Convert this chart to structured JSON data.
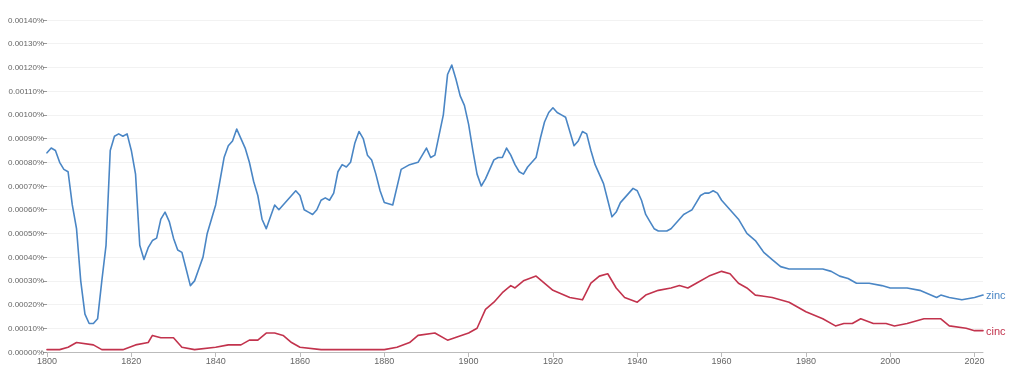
{
  "chart_data": {
    "type": "line",
    "xlim": [
      1800,
      2022
    ],
    "xticks": [
      1800,
      1820,
      1840,
      1860,
      1880,
      1900,
      1920,
      1940,
      1960,
      1980,
      2000,
      2020
    ],
    "ylim": [
      0,
      0.0014
    ],
    "yticks": [
      {
        "value": 0,
        "label": "0.00000%"
      },
      {
        "value": 0.0001,
        "label": "0.00010%"
      },
      {
        "value": 0.0002,
        "label": "0.00020%"
      },
      {
        "value": 0.0003,
        "label": "0.00030%"
      },
      {
        "value": 0.0004,
        "label": "0.00040%"
      },
      {
        "value": 0.0005,
        "label": "0.00050%"
      },
      {
        "value": 0.0006,
        "label": "0.00060%"
      },
      {
        "value": 0.0007,
        "label": "0.00070%"
      },
      {
        "value": 0.0008,
        "label": "0.00080%"
      },
      {
        "value": 0.0009,
        "label": "0.00090%"
      },
      {
        "value": 0.001,
        "label": "0.00100%"
      },
      {
        "value": 0.0011,
        "label": "0.00110%"
      },
      {
        "value": 0.0012,
        "label": "0.00120%"
      },
      {
        "value": 0.0013,
        "label": "0.00130%"
      },
      {
        "value": 0.0014,
        "label": "0.00140%"
      }
    ],
    "grid": "y",
    "marker": "none",
    "line_style": "solid",
    "series": [
      {
        "name": "zinc",
        "color": "#4a86c5",
        "x": [
          1800,
          1801,
          1802,
          1803,
          1804,
          1805,
          1806,
          1807,
          1808,
          1809,
          1810,
          1811,
          1812,
          1813,
          1814,
          1815,
          1816,
          1817,
          1818,
          1819,
          1820,
          1821,
          1822,
          1823,
          1824,
          1825,
          1826,
          1827,
          1828,
          1829,
          1830,
          1831,
          1832,
          1833,
          1834,
          1835,
          1836,
          1837,
          1838,
          1839,
          1840,
          1841,
          1842,
          1843,
          1844,
          1845,
          1846,
          1847,
          1848,
          1849,
          1850,
          1851,
          1852,
          1853,
          1854,
          1855,
          1856,
          1857,
          1858,
          1859,
          1860,
          1861,
          1862,
          1863,
          1864,
          1865,
          1866,
          1867,
          1868,
          1869,
          1870,
          1871,
          1872,
          1873,
          1874,
          1875,
          1876,
          1877,
          1878,
          1879,
          1880,
          1882,
          1884,
          1886,
          1888,
          1890,
          1891,
          1892,
          1894,
          1895,
          1896,
          1897,
          1898,
          1899,
          1900,
          1901,
          1902,
          1903,
          1904,
          1905,
          1906,
          1907,
          1908,
          1909,
          1910,
          1911,
          1912,
          1913,
          1914,
          1915,
          1916,
          1917,
          1918,
          1919,
          1920,
          1921,
          1922,
          1923,
          1924,
          1925,
          1926,
          1927,
          1928,
          1929,
          1930,
          1931,
          1932,
          1933,
          1934,
          1935,
          1936,
          1937,
          1938,
          1939,
          1940,
          1941,
          1942,
          1943,
          1944,
          1945,
          1946,
          1947,
          1948,
          1949,
          1950,
          1951,
          1952,
          1953,
          1954,
          1955,
          1956,
          1957,
          1958,
          1959,
          1960,
          1962,
          1964,
          1966,
          1968,
          1970,
          1972,
          1974,
          1976,
          1980,
          1984,
          1986,
          1988,
          1990,
          1992,
          1995,
          1998,
          2000,
          2004,
          2007,
          2011,
          2012,
          2014,
          2017,
          2020,
          2022
        ],
        "values": [
          0.00084,
          0.00086,
          0.00085,
          0.0008,
          0.00077,
          0.00076,
          0.00062,
          0.00052,
          0.0003,
          0.00016,
          0.00012,
          0.00012,
          0.00014,
          0.0003,
          0.00045,
          0.00085,
          0.00091,
          0.00092,
          0.00091,
          0.00092,
          0.00085,
          0.00075,
          0.00045,
          0.00039,
          0.00044,
          0.00047,
          0.00048,
          0.00056,
          0.00059,
          0.00055,
          0.00048,
          0.00043,
          0.00042,
          0.00035,
          0.00028,
          0.0003,
          0.00035,
          0.0004,
          0.0005,
          0.00056,
          0.00062,
          0.00072,
          0.00082,
          0.00087,
          0.00089,
          0.00094,
          0.0009,
          0.00086,
          0.0008,
          0.00072,
          0.00066,
          0.00056,
          0.00052,
          0.00057,
          0.00062,
          0.0006,
          0.00062,
          0.00064,
          0.00066,
          0.00068,
          0.00066,
          0.0006,
          0.00059,
          0.00058,
          0.0006,
          0.00064,
          0.00065,
          0.00064,
          0.00067,
          0.00076,
          0.00079,
          0.00078,
          0.0008,
          0.00088,
          0.00093,
          0.0009,
          0.00083,
          0.00081,
          0.00075,
          0.00068,
          0.00063,
          0.00062,
          0.00077,
          0.00079,
          0.0008,
          0.00086,
          0.00082,
          0.00083,
          0.001,
          0.00117,
          0.00121,
          0.00115,
          0.00108,
          0.00104,
          0.00096,
          0.00085,
          0.00075,
          0.0007,
          0.00073,
          0.00077,
          0.00081,
          0.00082,
          0.00082,
          0.00086,
          0.00083,
          0.00079,
          0.00076,
          0.00075,
          0.00078,
          0.0008,
          0.00082,
          0.0009,
          0.00097,
          0.00101,
          0.00103,
          0.00101,
          0.001,
          0.00099,
          0.00093,
          0.00087,
          0.00089,
          0.00093,
          0.00092,
          0.00085,
          0.00079,
          0.00075,
          0.00071,
          0.00064,
          0.00057,
          0.00059,
          0.00063,
          0.00065,
          0.00067,
          0.00069,
          0.00068,
          0.00064,
          0.00058,
          0.00055,
          0.00052,
          0.00051,
          0.00051,
          0.00051,
          0.00052,
          0.00054,
          0.00056,
          0.00058,
          0.00059,
          0.0006,
          0.00063,
          0.00066,
          0.00067,
          0.00067,
          0.00068,
          0.00067,
          0.00064,
          0.0006,
          0.00056,
          0.0005,
          0.00047,
          0.00042,
          0.00039,
          0.00036,
          0.00035,
          0.00035,
          0.00035,
          0.00034,
          0.00032,
          0.00031,
          0.00029,
          0.00029,
          0.00028,
          0.00027,
          0.00027,
          0.00026,
          0.00023,
          0.00024,
          0.00023,
          0.00022,
          0.00023,
          0.00024
        ]
      },
      {
        "name": "cinc",
        "color": "#c2334d",
        "x": [
          1800,
          1803,
          1805,
          1807,
          1811,
          1813,
          1818,
          1821,
          1824,
          1825,
          1827,
          1830,
          1832,
          1835,
          1840,
          1843,
          1846,
          1848,
          1850,
          1852,
          1854,
          1856,
          1858,
          1860,
          1865,
          1880,
          1883,
          1886,
          1888,
          1892,
          1895,
          1900,
          1902,
          1904,
          1906,
          1908,
          1910,
          1911,
          1913,
          1916,
          1920,
          1924,
          1927,
          1929,
          1931,
          1933,
          1935,
          1937,
          1940,
          1942,
          1945,
          1948,
          1950,
          1952,
          1954,
          1957,
          1960,
          1962,
          1964,
          1966,
          1968,
          1972,
          1976,
          1980,
          1984,
          1987,
          1989,
          1991,
          1993,
          1996,
          1999,
          2001,
          2004,
          2008,
          2012,
          2014,
          2018,
          2020,
          2022
        ],
        "values": [
          1e-05,
          1e-05,
          2e-05,
          4e-05,
          3e-05,
          1e-05,
          1e-05,
          3e-05,
          4e-05,
          7e-05,
          6e-05,
          6e-05,
          2e-05,
          1e-05,
          2e-05,
          3e-05,
          3e-05,
          5e-05,
          5e-05,
          8e-05,
          8e-05,
          7e-05,
          4e-05,
          2e-05,
          1e-05,
          1e-05,
          2e-05,
          4e-05,
          7e-05,
          8e-05,
          5e-05,
          8e-05,
          0.0001,
          0.00018,
          0.00021,
          0.00025,
          0.00028,
          0.00027,
          0.0003,
          0.00032,
          0.00026,
          0.00023,
          0.00022,
          0.00029,
          0.00032,
          0.00033,
          0.00027,
          0.00023,
          0.00021,
          0.00024,
          0.00026,
          0.00027,
          0.00028,
          0.00027,
          0.00029,
          0.00032,
          0.00034,
          0.00033,
          0.00029,
          0.00027,
          0.00024,
          0.00023,
          0.00021,
          0.00017,
          0.00014,
          0.00011,
          0.00012,
          0.00012,
          0.00014,
          0.00012,
          0.00012,
          0.00011,
          0.00012,
          0.00014,
          0.00014,
          0.00011,
          0.0001,
          9e-05,
          9e-05
        ]
      }
    ]
  }
}
